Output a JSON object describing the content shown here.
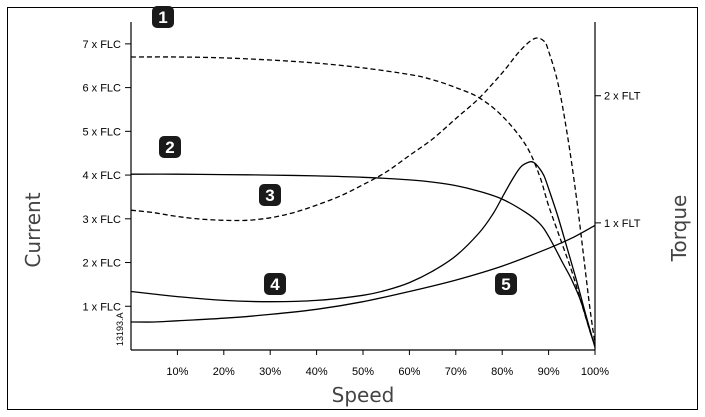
{
  "chart_data": {
    "type": "line",
    "xlabel": "Speed",
    "ylabel_left": "Current",
    "ylabel_right": "Torque",
    "reference_code": "13193.A",
    "x_ticks": [
      "10%",
      "20%",
      "30%",
      "40%",
      "50%",
      "60%",
      "70%",
      "80%",
      "90%",
      "100%"
    ],
    "x_tick_values": [
      10,
      20,
      30,
      40,
      50,
      60,
      70,
      80,
      90,
      100
    ],
    "xlim": [
      0,
      100
    ],
    "y_left_ticks": [
      "1 x FLC",
      "2 x FLC",
      "3 x FLC",
      "4 x FLC",
      "5 x FLC",
      "6 x FLC",
      "7 x FLC"
    ],
    "y_left_tick_values": [
      1,
      2,
      3,
      4,
      5,
      6,
      7
    ],
    "y_left_lim": [
      0,
      7.5
    ],
    "y_right_ticks": [
      "1 x FLT",
      "2 x FLT"
    ],
    "y_right_tick_values": [
      1,
      2
    ],
    "y_right_lim": [
      0,
      2.58
    ],
    "series": [
      {
        "badge": "1",
        "axis": "left",
        "style": "dashed",
        "x": [
          0,
          10,
          20,
          30,
          40,
          50,
          60,
          65,
          70,
          75,
          80,
          85,
          88,
          90,
          93,
          95,
          97,
          99,
          100
        ],
        "y": [
          6.7,
          6.7,
          6.68,
          6.63,
          6.56,
          6.45,
          6.3,
          6.18,
          6.0,
          5.77,
          5.35,
          4.7,
          4.0,
          3.3,
          2.4,
          1.8,
          1.1,
          0.4,
          0.1
        ]
      },
      {
        "badge": "2",
        "axis": "left",
        "style": "solid",
        "x": [
          0,
          10,
          20,
          30,
          40,
          50,
          60,
          65,
          70,
          75,
          80,
          85,
          88,
          90,
          93,
          95,
          97,
          99,
          100
        ],
        "y": [
          4.02,
          4.02,
          4.01,
          4.0,
          3.98,
          3.95,
          3.89,
          3.84,
          3.76,
          3.63,
          3.45,
          3.15,
          2.9,
          2.6,
          2.0,
          1.6,
          1.1,
          0.4,
          0.1
        ]
      },
      {
        "badge": "3",
        "axis": "right",
        "style": "dashed",
        "x": [
          0,
          5,
          10,
          15,
          20,
          25,
          30,
          35,
          40,
          45,
          50,
          55,
          60,
          65,
          70,
          75,
          80,
          84,
          87,
          89,
          90,
          92,
          94,
          96,
          98,
          99,
          100
        ],
        "y": [
          1.1,
          1.08,
          1.05,
          1.03,
          1.02,
          1.02,
          1.04,
          1.08,
          1.14,
          1.21,
          1.3,
          1.4,
          1.53,
          1.66,
          1.82,
          1.98,
          2.18,
          2.36,
          2.45,
          2.43,
          2.35,
          2.1,
          1.7,
          1.2,
          0.6,
          0.3,
          0.05
        ]
      },
      {
        "badge": "4",
        "axis": "right",
        "style": "solid",
        "x": [
          0,
          5,
          10,
          20,
          30,
          40,
          50,
          55,
          60,
          65,
          70,
          75,
          78,
          80,
          82,
          84,
          86,
          87,
          88,
          89,
          90,
          92,
          94,
          96,
          98,
          100
        ],
        "y": [
          0.46,
          0.44,
          0.42,
          0.39,
          0.38,
          0.39,
          0.43,
          0.47,
          0.53,
          0.62,
          0.74,
          0.92,
          1.07,
          1.2,
          1.33,
          1.44,
          1.48,
          1.47,
          1.43,
          1.37,
          1.27,
          1.05,
          0.8,
          0.55,
          0.28,
          0.02
        ]
      },
      {
        "badge": "5",
        "axis": "right",
        "style": "solid",
        "x": [
          0,
          5,
          10,
          20,
          30,
          40,
          50,
          60,
          70,
          80,
          90,
          95,
          100
        ],
        "y": [
          0.22,
          0.22,
          0.23,
          0.25,
          0.28,
          0.32,
          0.38,
          0.46,
          0.55,
          0.66,
          0.8,
          0.88,
          0.98
        ]
      }
    ]
  }
}
